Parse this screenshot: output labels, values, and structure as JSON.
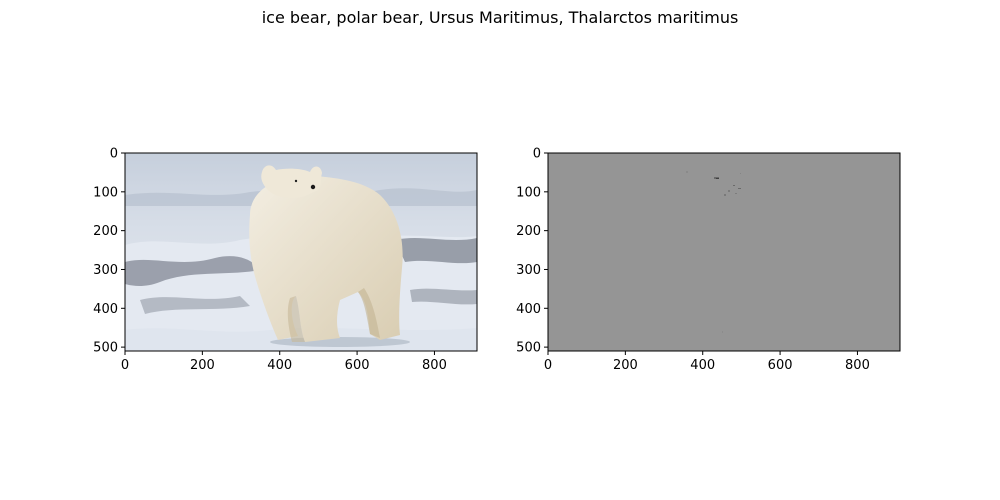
{
  "figure": {
    "suptitle": "ice bear, polar bear, Ursus Maritimus, Thalarctos maritimus"
  },
  "chart_data": [
    {
      "type": "image",
      "panel": "left",
      "content": "photograph of a polar bear walking on snow",
      "title": "",
      "xlabel": "",
      "ylabel": "",
      "xlim": [
        0,
        910
      ],
      "ylim": [
        510,
        0
      ],
      "x_ticks": [
        0,
        200,
        400,
        600,
        800
      ],
      "y_ticks": [
        0,
        100,
        200,
        300,
        400,
        500
      ],
      "x_tick_labels": [
        "0",
        "200",
        "400",
        "600",
        "800"
      ],
      "y_tick_labels": [
        "0",
        "100",
        "200",
        "300",
        "400",
        "500"
      ],
      "colors": {
        "sky": "#c9d3e0",
        "snow": "#e7ecf3",
        "fur": "#ece4d2",
        "shadow": "#b9ab90"
      }
    },
    {
      "type": "image",
      "panel": "right",
      "content": "mostly uniform gray difference map with faint speckles",
      "title": "",
      "xlabel": "",
      "ylabel": "",
      "xlim": [
        0,
        910
      ],
      "ylim": [
        510,
        0
      ],
      "x_ticks": [
        0,
        200,
        400,
        600,
        800
      ],
      "y_ticks": [
        0,
        100,
        200,
        300,
        400,
        500
      ],
      "x_tick_labels": [
        "0",
        "200",
        "400",
        "600",
        "800"
      ],
      "y_tick_labels": [
        "0",
        "100",
        "200",
        "300",
        "400",
        "500"
      ],
      "colors": {
        "background": "#959595",
        "speckle": "#6a6a6a"
      }
    }
  ]
}
